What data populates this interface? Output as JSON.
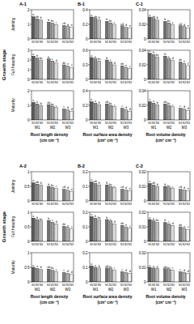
{
  "chart_data": [
    {
      "type": "bar",
      "panel": "A-1",
      "ylabel": "Jointing",
      "categories": [
        "N1",
        "N2",
        "N3",
        "N1",
        "N2",
        "N3",
        "N1",
        "N2",
        "N3"
      ],
      "values": [
        1.52,
        1.38,
        1.3,
        1.15,
        1.08,
        0.98,
        0.92,
        0.85,
        0.8
      ],
      "annotations": [
        "a",
        "ab",
        "b",
        "b",
        "bc",
        "c",
        "cd",
        "d",
        "e"
      ],
      "ylim": [
        0,
        2
      ],
      "yticks": [
        0,
        1,
        2
      ],
      "colors": [
        "#595959",
        "#8c8c8c",
        "#bfbfbf",
        "#6e6e6e",
        "#a0a0a0",
        "#d9d9d9",
        "#808080",
        "#b3b3b3",
        "#f2f2f2"
      ]
    },
    {
      "type": "bar",
      "ylabel": "Full heading",
      "row_label": "Growth stage",
      "categories": [
        "N1",
        "N2",
        "N3",
        "N1",
        "N2",
        "N3",
        "N1",
        "N2",
        "N3"
      ],
      "values": [
        2.4,
        2.2,
        2.0,
        2.1,
        1.9,
        1.7,
        1.5,
        1.4,
        1.2
      ],
      "annotations": [
        "a",
        "b",
        "bc",
        "b",
        "c",
        "d",
        "de",
        "e",
        "f"
      ],
      "ylim": [
        0,
        3
      ],
      "yticks": [
        0,
        1,
        2,
        3
      ],
      "colors": [
        "#595959",
        "#8c8c8c",
        "#bfbfbf",
        "#6e6e6e",
        "#a0a0a0",
        "#d9d9d9",
        "#808080",
        "#b3b3b3",
        "#f2f2f2"
      ]
    },
    {
      "type": "bar",
      "ylabel": "Maturity",
      "xlabel": "Root length density (cm cm⁻³)",
      "groups": [
        "W1",
        "W2",
        "W3"
      ],
      "categories": [
        "N1",
        "N2",
        "N3",
        "N1",
        "N2",
        "N3",
        "N1",
        "N2",
        "N3"
      ],
      "values": [
        1.2,
        1.1,
        1.0,
        1.05,
        0.95,
        0.85,
        0.75,
        0.7,
        0.6
      ],
      "annotations": [
        "a",
        "a",
        "b",
        "ab",
        "bc",
        "c",
        "c",
        "d",
        "d"
      ],
      "ylim": [
        0,
        2
      ],
      "yticks": [
        0,
        1,
        2
      ],
      "colors": [
        "#595959",
        "#8c8c8c",
        "#bfbfbf",
        "#6e6e6e",
        "#a0a0a0",
        "#d9d9d9",
        "#808080",
        "#b3b3b3",
        "#f2f2f2"
      ]
    },
    {
      "type": "bar",
      "panel": "B-1",
      "categories": [
        "N1",
        "N2",
        "N3",
        "N1",
        "N2",
        "N3",
        "N1",
        "N2",
        "N3"
      ],
      "values": [
        0.3,
        0.28,
        0.26,
        0.24,
        0.22,
        0.2,
        0.18,
        0.16,
        0.15
      ],
      "annotations": [
        "a",
        "ab",
        "b",
        "b",
        "bc",
        "c",
        "cd",
        "d",
        "e"
      ],
      "ylim": [
        0,
        0.4
      ],
      "yticks": [
        0,
        0.2,
        0.4
      ],
      "colors": [
        "#595959",
        "#8c8c8c",
        "#bfbfbf",
        "#6e6e6e",
        "#a0a0a0",
        "#d9d9d9",
        "#808080",
        "#b3b3b3",
        "#f2f2f2"
      ]
    },
    {
      "type": "bar",
      "categories": [
        "N1",
        "N2",
        "N3",
        "N1",
        "N2",
        "N3",
        "N1",
        "N2",
        "N3"
      ],
      "values": [
        0.45,
        0.42,
        0.38,
        0.4,
        0.36,
        0.3,
        0.28,
        0.25,
        0.22
      ],
      "annotations": [
        "a",
        "b",
        "bc",
        "b",
        "c",
        "d",
        "de",
        "e",
        "f"
      ],
      "ylim": [
        0,
        0.6
      ],
      "yticks": [
        0,
        0.3,
        0.6
      ],
      "colors": [
        "#595959",
        "#8c8c8c",
        "#bfbfbf",
        "#6e6e6e",
        "#a0a0a0",
        "#d9d9d9",
        "#808080",
        "#b3b3b3",
        "#f2f2f2"
      ]
    },
    {
      "type": "bar",
      "xlabel": "Root surface area density (cm² cm⁻³)",
      "groups": [
        "W1",
        "W2",
        "W3"
      ],
      "categories": [
        "N1",
        "N2",
        "N3",
        "N1",
        "N2",
        "N3",
        "N1",
        "N2",
        "N3"
      ],
      "values": [
        0.25,
        0.23,
        0.21,
        0.22,
        0.2,
        0.18,
        0.16,
        0.14,
        0.12
      ],
      "annotations": [
        "a",
        "a",
        "b",
        "ab",
        "bc",
        "c",
        "c",
        "d",
        "d"
      ],
      "ylim": [
        0,
        0.4
      ],
      "yticks": [
        0,
        0.2,
        0.4
      ],
      "colors": [
        "#595959",
        "#8c8c8c",
        "#bfbfbf",
        "#6e6e6e",
        "#a0a0a0",
        "#d9d9d9",
        "#808080",
        "#b3b3b3",
        "#f2f2f2"
      ]
    },
    {
      "type": "bar",
      "panel": "C-1",
      "categories": [
        "N1",
        "N2",
        "N3",
        "N1",
        "N2",
        "N3",
        "N1",
        "N2",
        "N3"
      ],
      "values": [
        0.03,
        0.028,
        0.026,
        0.024,
        0.022,
        0.02,
        0.018,
        0.017,
        0.015
      ],
      "annotations": [
        "a",
        "ab",
        "b",
        "b",
        "bc",
        "c",
        "cd",
        "d",
        "e"
      ],
      "ylim": [
        0,
        0.04
      ],
      "yticks": [
        0,
        0.02,
        0.04
      ],
      "colors": [
        "#595959",
        "#8c8c8c",
        "#bfbfbf",
        "#6e6e6e",
        "#a0a0a0",
        "#d9d9d9",
        "#808080",
        "#b3b3b3",
        "#f2f2f2"
      ]
    },
    {
      "type": "bar",
      "categories": [
        "N1",
        "N2",
        "N3",
        "N1",
        "N2",
        "N3",
        "N1",
        "N2",
        "N3"
      ],
      "values": [
        0.036,
        0.034,
        0.031,
        0.032,
        0.029,
        0.026,
        0.024,
        0.022,
        0.019
      ],
      "annotations": [
        "a",
        "b",
        "bc",
        "b",
        "c",
        "d",
        "de",
        "e",
        "f"
      ],
      "ylim": [
        0,
        0.04
      ],
      "yticks": [
        0,
        0.02,
        0.04
      ],
      "colors": [
        "#595959",
        "#8c8c8c",
        "#bfbfbf",
        "#6e6e6e",
        "#a0a0a0",
        "#d9d9d9",
        "#808080",
        "#b3b3b3",
        "#f2f2f2"
      ]
    },
    {
      "type": "bar",
      "xlabel": "Root volume density (cm³ cm⁻³)",
      "groups": [
        "W1",
        "W2",
        "W3"
      ],
      "categories": [
        "N1",
        "N2",
        "N3",
        "N1",
        "N2",
        "N3",
        "N1",
        "N2",
        "N3"
      ],
      "values": [
        0.025,
        0.023,
        0.021,
        0.022,
        0.02,
        0.018,
        0.016,
        0.015,
        0.013
      ],
      "annotations": [
        "a",
        "a",
        "b",
        "ab",
        "bc",
        "c",
        "c",
        "d",
        "d"
      ],
      "ylim": [
        0,
        0.04
      ],
      "yticks": [
        0,
        0.02,
        0.04
      ],
      "colors": [
        "#595959",
        "#8c8c8c",
        "#bfbfbf",
        "#6e6e6e",
        "#a0a0a0",
        "#d9d9d9",
        "#808080",
        "#b3b3b3",
        "#f2f2f2"
      ]
    },
    {
      "type": "bar",
      "panel": "A-2",
      "ylabel": "Jointing",
      "categories": [
        "N1",
        "N2",
        "N3",
        "N1",
        "N2",
        "N3",
        "N1",
        "N2",
        "N3"
      ],
      "values": [
        0.62,
        0.58,
        0.55,
        0.5,
        0.47,
        0.43,
        0.4,
        0.37,
        0.33
      ],
      "annotations": [
        "a",
        "ab",
        "b",
        "b",
        "bc",
        "c",
        "cd",
        "d",
        "e"
      ],
      "ylim": [
        0,
        1
      ],
      "yticks": [
        0,
        0.5,
        1
      ],
      "colors": [
        "#595959",
        "#8c8c8c",
        "#bfbfbf",
        "#6e6e6e",
        "#a0a0a0",
        "#d9d9d9",
        "#808080",
        "#b3b3b3",
        "#f2f2f2"
      ]
    },
    {
      "type": "bar",
      "ylabel": "Full heading",
      "row_label": "Growth stage",
      "categories": [
        "N1",
        "N2",
        "N3",
        "N1",
        "N2",
        "N3",
        "N1",
        "N2",
        "N3"
      ],
      "values": [
        0.8,
        0.75,
        0.7,
        0.72,
        0.66,
        0.6,
        0.52,
        0.48,
        0.42
      ],
      "annotations": [
        "a",
        "b",
        "bc",
        "b",
        "c",
        "d",
        "de",
        "e",
        "f"
      ],
      "ylim": [
        0,
        1
      ],
      "yticks": [
        0,
        0.5,
        1
      ],
      "colors": [
        "#595959",
        "#8c8c8c",
        "#bfbfbf",
        "#6e6e6e",
        "#a0a0a0",
        "#d9d9d9",
        "#808080",
        "#b3b3b3",
        "#f2f2f2"
      ]
    },
    {
      "type": "bar",
      "ylabel": "Maturity",
      "xlabel": "Root length density (cm cm⁻³)",
      "groups": [
        "W1",
        "W2",
        "W3"
      ],
      "categories": [
        "N1",
        "N2",
        "N3",
        "N1",
        "N2",
        "N3",
        "N1",
        "N2",
        "N3"
      ],
      "values": [
        0.5,
        0.46,
        0.43,
        0.44,
        0.4,
        0.36,
        0.32,
        0.29,
        0.26
      ],
      "annotations": [
        "a",
        "a",
        "b",
        "ab",
        "bc",
        "c",
        "c",
        "d",
        "d"
      ],
      "ylim": [
        0,
        1
      ],
      "yticks": [
        0,
        0.5,
        1
      ],
      "colors": [
        "#595959",
        "#8c8c8c",
        "#bfbfbf",
        "#6e6e6e",
        "#a0a0a0",
        "#d9d9d9",
        "#808080",
        "#b3b3b3",
        "#f2f2f2"
      ]
    },
    {
      "type": "bar",
      "panel": "B-2",
      "categories": [
        "N1",
        "N2",
        "N3",
        "N1",
        "N2",
        "N3",
        "N1",
        "N2",
        "N3"
      ],
      "values": [
        0.13,
        0.12,
        0.11,
        0.11,
        0.1,
        0.09,
        0.08,
        0.075,
        0.07
      ],
      "annotations": [
        "a",
        "ab",
        "b",
        "b",
        "bc",
        "c",
        "cd",
        "d",
        "e"
      ],
      "ylim": [
        0,
        0.2
      ],
      "yticks": [
        0,
        0.1,
        0.2
      ],
      "colors": [
        "#595959",
        "#8c8c8c",
        "#bfbfbf",
        "#6e6e6e",
        "#a0a0a0",
        "#d9d9d9",
        "#808080",
        "#b3b3b3",
        "#f2f2f2"
      ]
    },
    {
      "type": "bar",
      "categories": [
        "N1",
        "N2",
        "N3",
        "N1",
        "N2",
        "N3",
        "N1",
        "N2",
        "N3"
      ],
      "values": [
        0.17,
        0.16,
        0.15,
        0.15,
        0.14,
        0.12,
        0.11,
        0.1,
        0.09
      ],
      "annotations": [
        "a",
        "b",
        "bc",
        "b",
        "c",
        "d",
        "de",
        "e",
        "f"
      ],
      "ylim": [
        0,
        0.2
      ],
      "yticks": [
        0,
        0.1,
        0.2
      ],
      "colors": [
        "#595959",
        "#8c8c8c",
        "#bfbfbf",
        "#6e6e6e",
        "#a0a0a0",
        "#d9d9d9",
        "#808080",
        "#b3b3b3",
        "#f2f2f2"
      ]
    },
    {
      "type": "bar",
      "xlabel": "Root surface area density (cm² cm⁻³)",
      "groups": [
        "W1",
        "W2",
        "W3"
      ],
      "categories": [
        "N1",
        "N2",
        "N3",
        "N1",
        "N2",
        "N3",
        "N1",
        "N2",
        "N3"
      ],
      "values": [
        0.11,
        0.1,
        0.095,
        0.095,
        0.09,
        0.08,
        0.07,
        0.065,
        0.06
      ],
      "annotations": [
        "a",
        "a",
        "b",
        "ab",
        "bc",
        "c",
        "c",
        "d",
        "d"
      ],
      "ylim": [
        0,
        0.2
      ],
      "yticks": [
        0,
        0.1,
        0.2
      ],
      "colors": [
        "#595959",
        "#8c8c8c",
        "#bfbfbf",
        "#6e6e6e",
        "#a0a0a0",
        "#d9d9d9",
        "#808080",
        "#b3b3b3",
        "#f2f2f2"
      ]
    },
    {
      "type": "bar",
      "panel": "C-2",
      "categories": [
        "N1",
        "N2",
        "N3",
        "N1",
        "N2",
        "N3",
        "N1",
        "N2",
        "N3"
      ],
      "values": [
        0.012,
        0.011,
        0.01,
        0.01,
        0.009,
        0.0085,
        0.008,
        0.0075,
        0.007
      ],
      "annotations": [
        "a",
        "ab",
        "b",
        "b",
        "bc",
        "c",
        "cd",
        "d",
        "e"
      ],
      "ylim": [
        0,
        0.02
      ],
      "yticks": [
        0,
        0.01,
        0.02
      ],
      "colors": [
        "#595959",
        "#8c8c8c",
        "#bfbfbf",
        "#6e6e6e",
        "#a0a0a0",
        "#d9d9d9",
        "#808080",
        "#b3b3b3",
        "#f2f2f2"
      ]
    },
    {
      "type": "bar",
      "categories": [
        "N1",
        "N2",
        "N3",
        "N1",
        "N2",
        "N3",
        "N1",
        "N2",
        "N3"
      ],
      "values": [
        0.015,
        0.014,
        0.013,
        0.013,
        0.012,
        0.011,
        0.01,
        0.009,
        0.008
      ],
      "annotations": [
        "a",
        "b",
        "bc",
        "b",
        "c",
        "d",
        "de",
        "e",
        "f"
      ],
      "ylim": [
        0,
        0.02
      ],
      "yticks": [
        0,
        0.01,
        0.02
      ],
      "colors": [
        "#595959",
        "#8c8c8c",
        "#bfbfbf",
        "#6e6e6e",
        "#a0a0a0",
        "#d9d9d9",
        "#808080",
        "#b3b3b3",
        "#f2f2f2"
      ]
    },
    {
      "type": "bar",
      "xlabel": "Root volume density (cm³ cm⁻³)",
      "groups": [
        "W1",
        "W2",
        "W3"
      ],
      "categories": [
        "N1",
        "N2",
        "N3",
        "N1",
        "N2",
        "N3",
        "N1",
        "N2",
        "N3"
      ],
      "values": [
        0.01,
        0.0095,
        0.009,
        0.009,
        0.0085,
        0.008,
        0.007,
        0.0065,
        0.006
      ],
      "annotations": [
        "a",
        "a",
        "b",
        "ab",
        "bc",
        "c",
        "c",
        "d",
        "d"
      ],
      "ylim": [
        0,
        0.02
      ],
      "yticks": [
        0,
        0.01,
        0.02
      ],
      "colors": [
        "#595959",
        "#8c8c8c",
        "#bfbfbf",
        "#6e6e6e",
        "#a0a0a0",
        "#d9d9d9",
        "#808080",
        "#b3b3b3",
        "#f2f2f2"
      ]
    }
  ]
}
